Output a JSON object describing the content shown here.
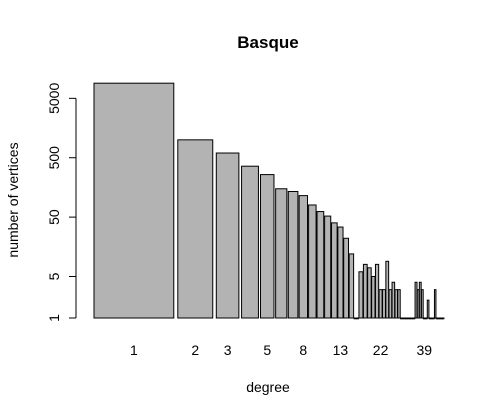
{
  "chart_data": {
    "type": "bar",
    "title": "Basque",
    "xlabel": "degree",
    "ylabel": "number of vertices",
    "y_scale": "log",
    "ylim": [
      1,
      11000
    ],
    "yticks": [
      1,
      5,
      50,
      500,
      5000
    ],
    "xtick_labels": [
      "1",
      "2",
      "3",
      "5",
      "8",
      "13",
      "22",
      "39"
    ],
    "grid": false,
    "legend": "none",
    "colors": {
      "bar_fill": "#b3b3b3",
      "bar_stroke": "#000000"
    },
    "categories": [
      1,
      2,
      3,
      4,
      5,
      6,
      7,
      8,
      9,
      10,
      11,
      12,
      13,
      14,
      15,
      16,
      17,
      18,
      19,
      20,
      21,
      22,
      23,
      24,
      25,
      26,
      27,
      28,
      29,
      30,
      31,
      32,
      33,
      34,
      35,
      36,
      37,
      38,
      39,
      40,
      41,
      42,
      43,
      44,
      45,
      46,
      47,
      48,
      49,
      50
    ],
    "values": [
      9000,
      1000,
      600,
      360,
      260,
      150,
      135,
      115,
      80,
      62,
      52,
      40,
      34,
      22,
      12,
      1,
      6,
      8,
      7,
      5,
      8,
      3,
      3,
      9,
      3,
      4,
      3,
      3,
      1,
      1,
      1,
      1,
      1,
      1,
      4,
      3,
      4,
      3,
      1,
      1,
      2,
      1,
      1,
      1,
      3,
      1,
      1,
      1,
      1,
      1
    ]
  }
}
